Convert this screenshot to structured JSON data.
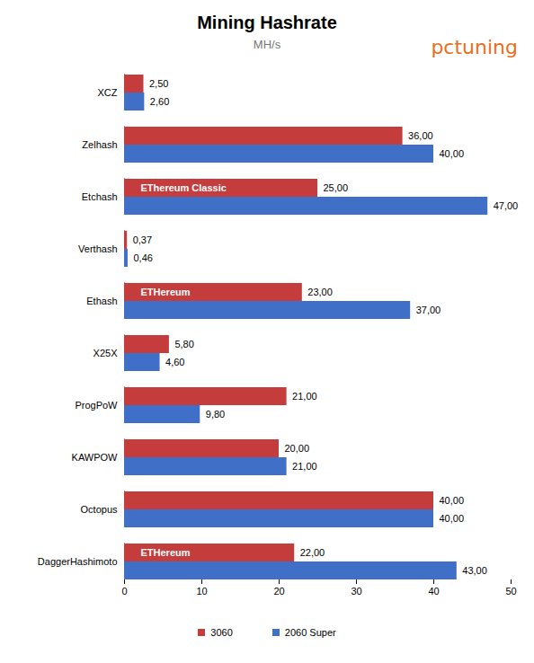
{
  "chart_data": {
    "type": "bar",
    "orientation": "horizontal",
    "title": "Mining Hashrate",
    "subtitle": "MH/s",
    "credit": "pctuning",
    "categories": [
      "XCZ",
      "Zelhash",
      "Etchash",
      "Verthash",
      "Ethash",
      "X25X",
      "ProgPoW",
      "KAWPOW",
      "Octopus",
      "DaggerHashimoto"
    ],
    "series": [
      {
        "name": "3060",
        "color": "#c43c3c",
        "values": [
          2.5,
          36,
          25,
          0.37,
          23,
          5.8,
          21,
          20,
          40,
          22
        ],
        "value_labels": [
          "2,50",
          "36,00",
          "25,00",
          "0,37",
          "23,00",
          "5,80",
          "21,00",
          "20,00",
          "40,00",
          "22,00"
        ]
      },
      {
        "name": "2060 Super",
        "color": "#3f6fc6",
        "values": [
          2.6,
          40,
          47,
          0.46,
          37,
          4.6,
          9.8,
          21,
          40,
          43
        ],
        "value_labels": [
          "2,60",
          "40,00",
          "47,00",
          "0,46",
          "37,00",
          "4,60",
          "9,80",
          "21,00",
          "40,00",
          "43,00"
        ]
      }
    ],
    "xlim": [
      0,
      50
    ],
    "xticks": [
      0,
      10,
      20,
      30,
      40,
      50
    ],
    "grid": false,
    "legend": "bottom",
    "data_labels": true,
    "annotations": [
      {
        "category": "Etchash",
        "series": "3060",
        "text": "EThereum Classic"
      },
      {
        "category": "Ethash",
        "series": "3060",
        "text": "ETHereum"
      },
      {
        "category": "DaggerHashimoto",
        "series": "3060",
        "text": "ETHereum"
      }
    ]
  }
}
